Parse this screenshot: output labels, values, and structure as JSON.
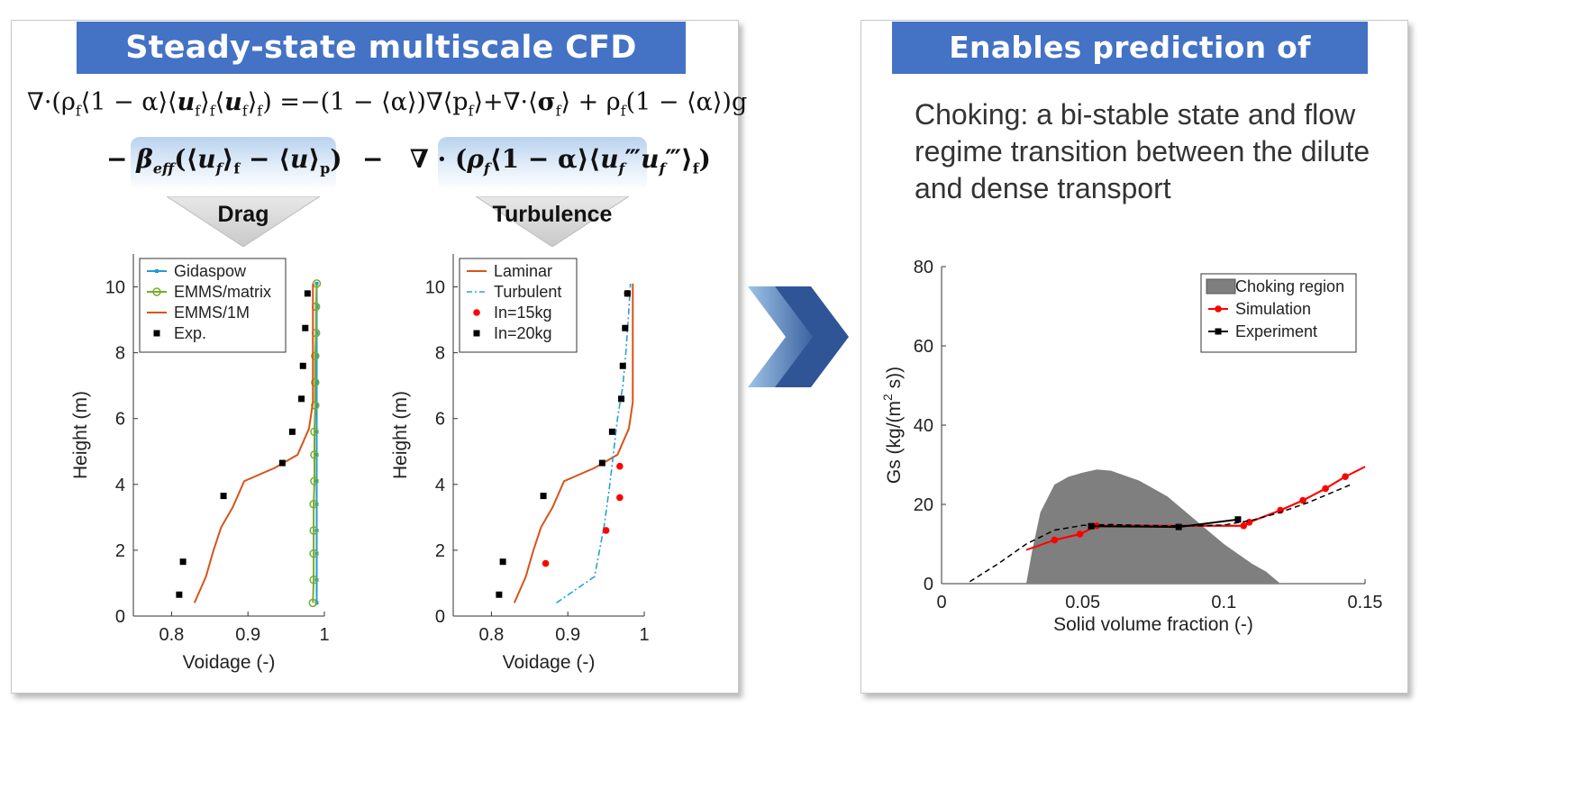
{
  "left_panel": {
    "title": "Steady-state multiscale CFD modeling",
    "equation": {
      "line1_lhs": "∇·(ρ_f⟨1−α⟩⟨u_f⟩_f⟨u_f⟩_f)",
      "line1_rhs": "=−(1−⟨α⟩)∇⟨p_f⟩+∇·⟨σ_f⟩ + ρ_f(1−⟨α⟩)g",
      "drag_term": "β_eff(⟨u_f⟩_f − ⟨u⟩_p)",
      "turb_term": "∇·(ρ_f⟨1−α⟩⟨u_f‴u_f‴⟩_f)"
    },
    "drag_label": "Drag",
    "turbulence_label": "Turbulence"
  },
  "right_panel": {
    "title": "Enables prediction of choking",
    "description": "Choking: a bi-stable state and flow regime transition between the dilute and dense transport"
  },
  "colors": {
    "banner": "#4472c4",
    "gidaspow": "#1f9bd7",
    "emms_matrix": "#77ac30",
    "emms_1m": "#d95319",
    "turbulent": "#2a9fd8",
    "red": "#ff0000",
    "black": "#000000",
    "choking_fill": "#7f7f7f"
  },
  "chart_data": [
    {
      "type": "line",
      "xlabel": "Voidage (-)",
      "ylabel": "Height (m)",
      "xlim": [
        0.75,
        1.0
      ],
      "ylim": [
        0,
        11
      ],
      "xticks": [
        "0.8",
        "0.9",
        "1"
      ],
      "yticks": [
        "0",
        "2",
        "4",
        "6",
        "8",
        "10"
      ],
      "legend_position": "top-left",
      "series": [
        {
          "name": "Gidaspow",
          "color": "#1f9bd7",
          "style": "line-marker",
          "x": [
            0.99,
            0.99,
            0.99,
            0.99,
            0.99,
            0.99,
            0.99,
            0.99,
            0.99,
            0.99,
            0.99,
            0.99,
            0.99,
            0.99
          ],
          "y": [
            0.4,
            1.1,
            1.9,
            2.6,
            3.4,
            4.1,
            4.9,
            5.6,
            6.4,
            7.1,
            7.9,
            8.6,
            9.4,
            10.1
          ]
        },
        {
          "name": "EMMS/matrix",
          "color": "#77ac30",
          "style": "line-circle",
          "x": [
            0.985,
            0.986,
            0.986,
            0.986,
            0.986,
            0.987,
            0.987,
            0.987,
            0.988,
            0.988,
            0.988,
            0.989,
            0.989,
            0.99
          ],
          "y": [
            0.4,
            1.1,
            1.9,
            2.6,
            3.4,
            4.1,
            4.9,
            5.6,
            6.4,
            7.1,
            7.9,
            8.6,
            9.4,
            10.1
          ]
        },
        {
          "name": "EMMS/1M",
          "color": "#d95319",
          "style": "line",
          "x": [
            0.83,
            0.845,
            0.855,
            0.865,
            0.88,
            0.895,
            0.935,
            0.965,
            0.98,
            0.985,
            0.985,
            0.985,
            0.985
          ],
          "y": [
            0.4,
            1.2,
            2.0,
            2.7,
            3.3,
            4.1,
            4.5,
            4.9,
            5.7,
            6.5,
            7.5,
            9.0,
            10.1
          ]
        },
        {
          "name": "Exp.",
          "color": "#000000",
          "style": "square",
          "x": [
            0.81,
            0.815,
            0.868,
            0.945,
            0.958,
            0.97,
            0.972,
            0.975,
            0.978
          ],
          "y": [
            0.65,
            1.65,
            3.65,
            4.65,
            5.6,
            6.6,
            7.6,
            8.75,
            9.8
          ]
        }
      ]
    },
    {
      "type": "line",
      "xlabel": "Voidage (-)",
      "ylabel": "Height (m)",
      "xlim": [
        0.75,
        1.0
      ],
      "ylim": [
        0,
        11
      ],
      "xticks": [
        "0.8",
        "0.9",
        "1"
      ],
      "yticks": [
        "0",
        "2",
        "4",
        "6",
        "8",
        "10"
      ],
      "legend_position": "top-left",
      "series": [
        {
          "name": "Laminar",
          "color": "#d95319",
          "style": "line",
          "x": [
            0.83,
            0.845,
            0.855,
            0.865,
            0.88,
            0.895,
            0.935,
            0.965,
            0.98,
            0.985,
            0.985,
            0.985,
            0.985
          ],
          "y": [
            0.4,
            1.2,
            2.0,
            2.7,
            3.3,
            4.1,
            4.5,
            4.9,
            5.7,
            6.5,
            7.5,
            9.0,
            10.1
          ]
        },
        {
          "name": "Turbulent",
          "color": "#2a9fd8",
          "style": "dashdot",
          "x": [
            0.885,
            0.935,
            0.948,
            0.955,
            0.96,
            0.965,
            0.972,
            0.976,
            0.979,
            0.982
          ],
          "y": [
            0.4,
            1.2,
            2.8,
            4.0,
            5.0,
            6.0,
            7.0,
            8.0,
            9.0,
            10.1
          ]
        },
        {
          "name": "In=15kg",
          "color": "#ff0000",
          "style": "dot",
          "x": [
            0.871,
            0.95,
            0.968,
            0.968,
            0.978
          ],
          "y": [
            1.6,
            2.6,
            3.6,
            4.55,
            9.8
          ]
        },
        {
          "name": "In=20kg",
          "color": "#000000",
          "style": "square",
          "x": [
            0.81,
            0.815,
            0.868,
            0.945,
            0.958,
            0.97,
            0.972,
            0.975,
            0.978
          ],
          "y": [
            0.65,
            1.65,
            3.65,
            4.65,
            5.6,
            6.6,
            7.6,
            8.75,
            9.8
          ]
        }
      ]
    },
    {
      "type": "area",
      "xlabel": "Solid volume fraction (-)",
      "ylabel": "Gs (kg/(m² s))",
      "xlim": [
        0,
        0.15
      ],
      "ylim": [
        0,
        80
      ],
      "xticks": [
        "0",
        "0.05",
        "0.1",
        "0.15"
      ],
      "yticks": [
        "0",
        "20",
        "40",
        "60",
        "80"
      ],
      "legend_position": "top-right",
      "series": [
        {
          "name": "Choking region",
          "color": "#7f7f7f",
          "style": "fill",
          "x": [
            0.03,
            0.032,
            0.035,
            0.04,
            0.045,
            0.05,
            0.055,
            0.06,
            0.07,
            0.08,
            0.09,
            0.1,
            0.11,
            0.115,
            0.12
          ],
          "y": [
            0,
            8,
            18,
            25,
            27,
            28,
            28.8,
            28.5,
            26,
            22,
            16,
            10,
            5,
            3,
            0
          ]
        },
        {
          "name": "Simulation",
          "color": "#ff0000",
          "style": "line-dot",
          "x": [
            0.04,
            0.049,
            0.055,
            0.107,
            0.109,
            0.12,
            0.128,
            0.136,
            0.143
          ],
          "y": [
            11,
            12.5,
            14.6,
            14.6,
            15.5,
            18.5,
            21,
            24,
            27
          ]
        },
        {
          "name": "Simulation",
          "color": "#ff0000",
          "style": "line",
          "x": [
            0.03,
            0.04,
            0.049,
            0.055,
            0.107,
            0.109,
            0.12,
            0.128,
            0.136,
            0.143,
            0.15
          ],
          "y": [
            8.5,
            11,
            12.5,
            14.6,
            14.6,
            15.5,
            18.5,
            21,
            24,
            27,
            29.5
          ]
        },
        {
          "name": "Experiment",
          "color": "#000000",
          "style": "line-square",
          "x": [
            0.053,
            0.084,
            0.105
          ],
          "y": [
            14.5,
            14.3,
            16.2
          ]
        },
        {
          "name": "",
          "color": "#000000",
          "style": "dashed",
          "x": [
            0.01,
            0.02,
            0.03,
            0.04,
            0.05,
            0.06,
            0.07,
            0.08,
            0.09,
            0.1,
            0.11,
            0.12,
            0.13,
            0.14,
            0.145
          ],
          "y": [
            0.5,
            5,
            10,
            13.5,
            14.7,
            14.9,
            14.7,
            14.6,
            14.6,
            14.8,
            16,
            18,
            20.5,
            23.5,
            25
          ]
        }
      ]
    }
  ]
}
